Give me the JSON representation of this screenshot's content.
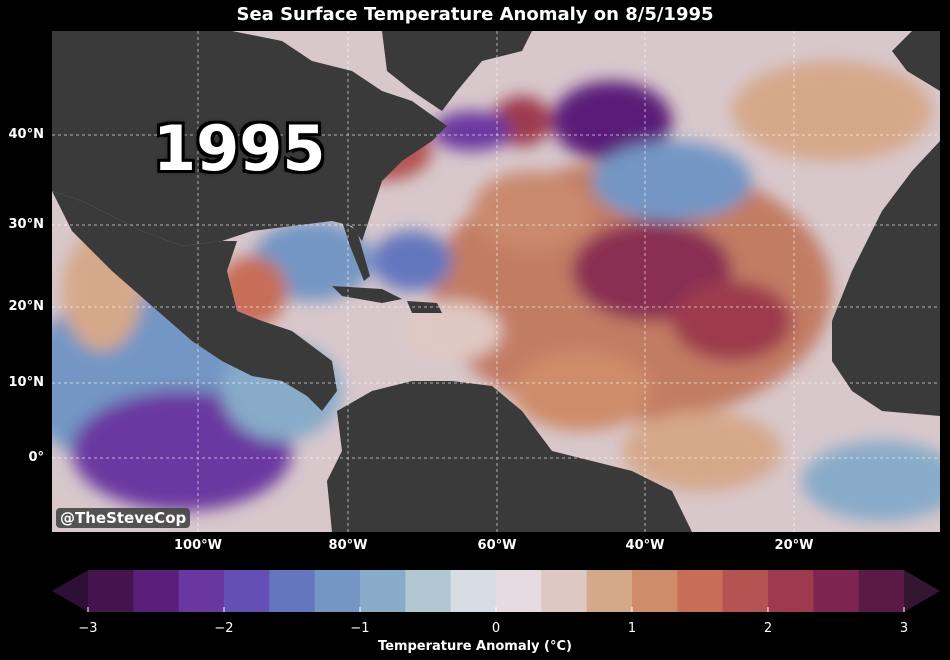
{
  "title": "Sea Surface Temperature Anomaly on 8/5/1995",
  "year_label": "1995",
  "watermark": "@TheSteveCop",
  "lat_labels": [
    "40°N",
    "30°N",
    "20°N",
    "10°N",
    "0°"
  ],
  "lon_labels": [
    "100°W",
    "80°W",
    "60°W",
    "40°W",
    "20°W"
  ],
  "colorbar": {
    "label": "Temperature Anomaly (°C)",
    "tick_labels": [
      "−3",
      "−2",
      "−1",
      "0",
      "1",
      "2",
      "3"
    ],
    "range": [
      -3,
      3
    ],
    "levels": 20,
    "colors": [
      "#2e1036",
      "#45144f",
      "#5a1f78",
      "#6a37a0",
      "#6450b4",
      "#6477be",
      "#7396c4",
      "#88abc9",
      "#b1c7d2",
      "#d6dde3",
      "#e6dbe0",
      "#e0c8c2",
      "#d6a88a",
      "#cf8c6b",
      "#c76d58",
      "#b45452",
      "#9d3a4e",
      "#7e2450",
      "#5b1a46",
      "#341530"
    ]
  },
  "colors": {
    "land": "#3a3a3a",
    "background": "#000000",
    "grid": "#ffffff"
  }
}
